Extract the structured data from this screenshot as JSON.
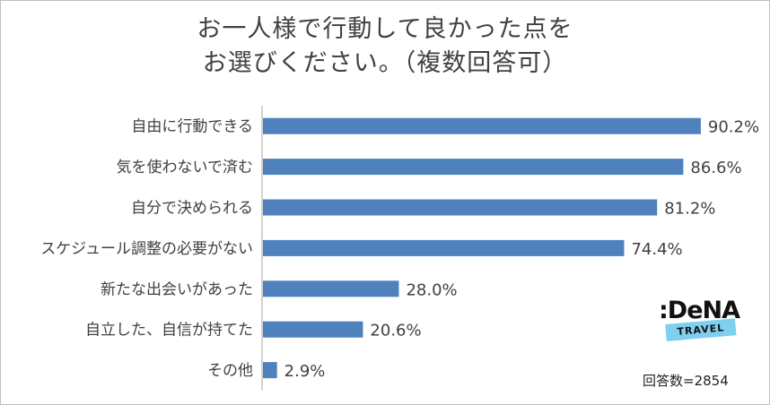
{
  "title": [
    "お一人様で行動して良かった点を",
    "お選びください。（複数回答可）"
  ],
  "logo": {
    "name": ":DeNA",
    "sub": "TRAVEL"
  },
  "footer": "回答数=2854",
  "colors": {
    "bar": "#4f81bd",
    "axis": "#a6a6a6"
  },
  "chart_data": {
    "type": "bar",
    "orientation": "horizontal",
    "title": "お一人様で行動して良かった点を お選びください。（複数回答可）",
    "categories": [
      "自由に行動できる",
      "気を使わないで済む",
      "自分で決められる",
      "スケジュール調整の必要がない",
      "新たな出会いがあった",
      "自立した、自信が持てた",
      "その他"
    ],
    "values": [
      90.2,
      86.6,
      81.2,
      74.4,
      28.0,
      20.6,
      2.9
    ],
    "value_labels": [
      "90.2%",
      "86.6%",
      "81.2%",
      "74.4%",
      "28.0%",
      "20.6%",
      "2.9%"
    ],
    "unit": "%",
    "xlim": [
      0,
      100
    ],
    "grid": false,
    "legend": "none"
  }
}
